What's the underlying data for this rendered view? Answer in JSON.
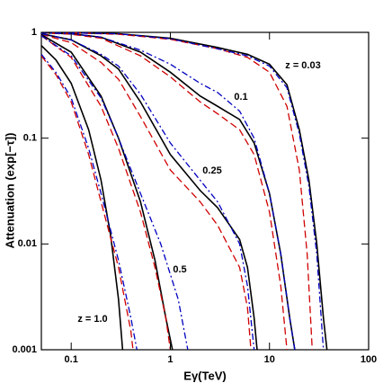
{
  "chart_data": {
    "type": "line",
    "xlabel": "Eγ(TeV)",
    "ylabel": "Attenuation (exp[−τ])",
    "xscale": "log",
    "yscale": "log",
    "xlim": [
      0.05,
      100
    ],
    "ylim": [
      0.001,
      1
    ],
    "xticks": [
      0.1,
      1,
      10,
      100
    ],
    "yticks": [
      0.001,
      0.01,
      0.1,
      1
    ],
    "annotations": [
      "z = 0.03",
      "0.1",
      "0.25",
      "0.5",
      "z = 1.0"
    ],
    "series": [
      {
        "color": "#000000",
        "dash": "solid",
        "x": [
          0.05,
          0.1,
          0.3,
          1,
          3,
          6,
          10,
          15,
          20,
          25,
          30,
          35,
          38
        ],
        "values": [
          1,
          0.99,
          0.97,
          0.88,
          0.72,
          0.62,
          0.5,
          0.32,
          0.12,
          0.04,
          0.01,
          0.002,
          0.001
        ]
      },
      {
        "color": "#d00000",
        "dash": "dashed",
        "x": [
          0.05,
          0.1,
          0.3,
          1,
          3,
          6,
          10,
          15,
          20,
          24,
          27
        ],
        "values": [
          1,
          0.99,
          0.96,
          0.86,
          0.7,
          0.58,
          0.42,
          0.2,
          0.05,
          0.008,
          0.001
        ]
      },
      {
        "color": "#0000c0",
        "dash": "dashdot",
        "x": [
          0.05,
          0.1,
          0.3,
          1,
          3,
          6,
          10,
          15,
          20,
          25,
          30,
          35
        ],
        "values": [
          1,
          0.99,
          0.97,
          0.87,
          0.7,
          0.6,
          0.48,
          0.3,
          0.11,
          0.035,
          0.008,
          0.001
        ]
      },
      {
        "color": "#000000",
        "dash": "solid",
        "x": [
          0.05,
          0.1,
          0.2,
          0.5,
          1,
          2,
          3,
          5,
          7,
          10,
          13,
          16,
          18
        ],
        "values": [
          0.99,
          0.97,
          0.9,
          0.65,
          0.42,
          0.25,
          0.2,
          0.15,
          0.09,
          0.03,
          0.008,
          0.002,
          0.001
        ]
      },
      {
        "color": "#d00000",
        "dash": "dashed",
        "x": [
          0.05,
          0.1,
          0.2,
          0.5,
          1,
          2,
          3,
          5,
          7,
          10,
          13,
          15
        ],
        "values": [
          0.99,
          0.96,
          0.88,
          0.6,
          0.38,
          0.22,
          0.17,
          0.12,
          0.07,
          0.02,
          0.004,
          0.001
        ]
      },
      {
        "color": "#0000c0",
        "dash": "dashdot",
        "x": [
          0.05,
          0.1,
          0.2,
          0.5,
          1,
          2,
          3,
          5,
          7,
          10,
          13,
          16,
          18
        ],
        "values": [
          0.99,
          0.97,
          0.9,
          0.68,
          0.5,
          0.33,
          0.27,
          0.18,
          0.1,
          0.03,
          0.008,
          0.002,
          0.001
        ]
      },
      {
        "color": "#000000",
        "dash": "solid",
        "x": [
          0.05,
          0.1,
          0.2,
          0.3,
          0.5,
          1,
          2,
          3,
          5,
          6,
          7,
          7.5
        ],
        "values": [
          0.97,
          0.85,
          0.6,
          0.45,
          0.22,
          0.07,
          0.032,
          0.022,
          0.011,
          0.006,
          0.002,
          0.001
        ]
      },
      {
        "color": "#d00000",
        "dash": "dashed",
        "x": [
          0.05,
          0.1,
          0.2,
          0.3,
          0.5,
          1,
          2,
          3,
          5,
          6,
          6.5
        ],
        "values": [
          0.96,
          0.8,
          0.52,
          0.36,
          0.16,
          0.05,
          0.025,
          0.015,
          0.006,
          0.0025,
          0.001
        ]
      },
      {
        "color": "#0000c0",
        "dash": "dashdot",
        "x": [
          0.05,
          0.1,
          0.2,
          0.3,
          0.5,
          1,
          2,
          3,
          5,
          6,
          7
        ],
        "values": [
          0.97,
          0.85,
          0.62,
          0.48,
          0.26,
          0.09,
          0.04,
          0.025,
          0.01,
          0.004,
          0.001
        ]
      },
      {
        "color": "#000000",
        "dash": "solid",
        "x": [
          0.05,
          0.1,
          0.2,
          0.3,
          0.5,
          0.7,
          0.9,
          1.05
        ],
        "values": [
          0.95,
          0.65,
          0.25,
          0.1,
          0.025,
          0.007,
          0.002,
          0.001
        ]
      },
      {
        "color": "#d00000",
        "dash": "dashed",
        "x": [
          0.05,
          0.1,
          0.2,
          0.3,
          0.5,
          0.7,
          0.9,
          1.0
        ],
        "values": [
          0.93,
          0.58,
          0.2,
          0.08,
          0.02,
          0.006,
          0.002,
          0.001
        ]
      },
      {
        "color": "#0000c0",
        "dash": "dashdot",
        "x": [
          0.05,
          0.1,
          0.2,
          0.3,
          0.5,
          0.8,
          1.2,
          1.5
        ],
        "values": [
          0.93,
          0.6,
          0.24,
          0.1,
          0.03,
          0.01,
          0.003,
          0.001
        ]
      },
      {
        "color": "#000000",
        "dash": "solid",
        "x": [
          0.05,
          0.07,
          0.1,
          0.15,
          0.2,
          0.25,
          0.3,
          0.33
        ],
        "values": [
          0.75,
          0.55,
          0.33,
          0.12,
          0.04,
          0.012,
          0.003,
          0.001
        ]
      },
      {
        "color": "#d00000",
        "dash": "dashed",
        "x": [
          0.05,
          0.07,
          0.1,
          0.15,
          0.2,
          0.3,
          0.4,
          0.42
        ],
        "values": [
          0.6,
          0.4,
          0.22,
          0.07,
          0.025,
          0.006,
          0.0015,
          0.001
        ]
      },
      {
        "color": "#0000c0",
        "dash": "dashdot",
        "x": [
          0.05,
          0.07,
          0.1,
          0.15,
          0.2,
          0.3,
          0.4,
          0.46
        ],
        "values": [
          0.62,
          0.42,
          0.24,
          0.08,
          0.03,
          0.007,
          0.002,
          0.001
        ]
      }
    ]
  }
}
